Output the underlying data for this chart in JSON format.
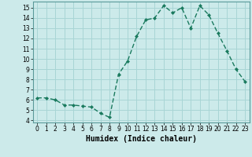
{
  "x": [
    0,
    1,
    2,
    3,
    4,
    5,
    6,
    7,
    8,
    9,
    10,
    11,
    12,
    13,
    14,
    15,
    16,
    17,
    18,
    19,
    20,
    21,
    22,
    23
  ],
  "y": [
    6.2,
    6.2,
    6.0,
    5.5,
    5.5,
    5.4,
    5.3,
    4.7,
    4.3,
    8.5,
    9.8,
    12.2,
    13.8,
    14.0,
    15.2,
    14.5,
    15.0,
    13.0,
    15.2,
    14.3,
    12.5,
    10.8,
    9.0,
    7.8
  ],
  "xlabel": "Humidex (Indice chaleur)",
  "ylim": [
    3.8,
    15.6
  ],
  "xlim": [
    -0.5,
    23.5
  ],
  "yticks": [
    4,
    5,
    6,
    7,
    8,
    9,
    10,
    11,
    12,
    13,
    14,
    15
  ],
  "xticks": [
    0,
    1,
    2,
    3,
    4,
    5,
    6,
    7,
    8,
    9,
    10,
    11,
    12,
    13,
    14,
    15,
    16,
    17,
    18,
    19,
    20,
    21,
    22,
    23
  ],
  "line_color": "#1a7a5e",
  "marker_color": "#1a7a5e",
  "bg_color": "#cceaea",
  "grid_color": "#a8d5d5",
  "tick_fontsize": 5.5,
  "xlabel_fontsize": 7
}
